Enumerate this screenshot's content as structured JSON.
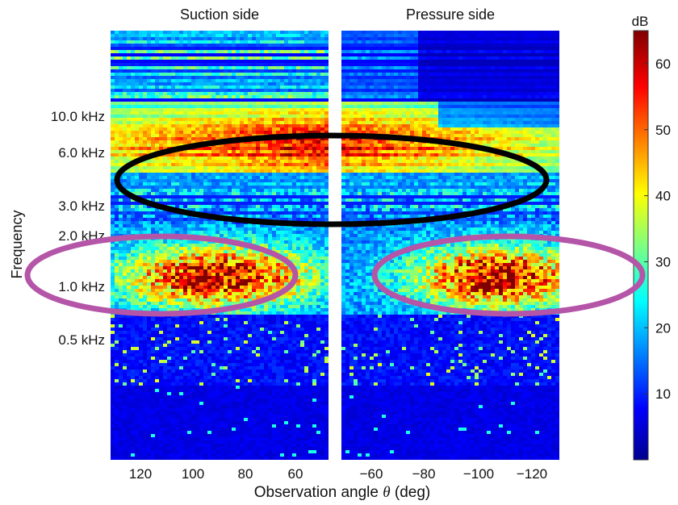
{
  "chart_data": {
    "type": "heatmap",
    "panels": [
      {
        "title": "Suction side",
        "x_ticks": [
          "120",
          "100",
          "80",
          "60"
        ],
        "x_tick_values": [
          120,
          100,
          80,
          60
        ],
        "xlim": [
          135,
          50
        ]
      },
      {
        "title": "Pressure side",
        "x_ticks": [
          "−60",
          "−80",
          "−100",
          "−120"
        ],
        "x_tick_values": [
          -60,
          -80,
          -100,
          -120
        ],
        "xlim": [
          -50,
          -135
        ]
      }
    ],
    "ylabel": "Frequency",
    "y_ticks": [
      "10.0 kHz",
      "6.0 kHz",
      "3.0 kHz",
      "2.0 kHz",
      "1.0 kHz",
      "0.5 kHz"
    ],
    "y_tick_values_khz": [
      10.0,
      6.0,
      3.0,
      2.0,
      1.0,
      0.5
    ],
    "y_scale": "log",
    "xlabel_prefix": "Observation angle ",
    "xlabel_symbol": "θ",
    "xlabel_suffix": " (deg)",
    "colorbar": {
      "unit": "dB",
      "ticks": [
        "60",
        "50",
        "40",
        "30",
        "20",
        "10"
      ],
      "tick_values": [
        60,
        50,
        40,
        30,
        20,
        10
      ],
      "range": [
        0,
        65
      ],
      "colormap": "jet"
    },
    "highlight_regions": [
      {
        "panel": "both",
        "freq_range_khz": [
          2.5,
          7.0
        ],
        "color": "#000000"
      },
      {
        "panel": "Suction side",
        "freq_range_khz": [
          0.7,
          1.8
        ],
        "color": "#b455a8"
      },
      {
        "panel": "Pressure side",
        "freq_range_khz": [
          0.7,
          1.8
        ],
        "color": "#b455a8"
      }
    ]
  }
}
